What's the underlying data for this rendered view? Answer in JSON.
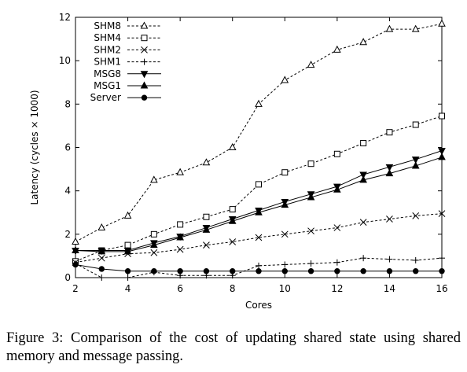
{
  "chart_data": {
    "type": "line",
    "xlabel": "Cores",
    "ylabel": "Latency (cycles × 1000)",
    "xlim": [
      2,
      16
    ],
    "ylim": [
      0,
      12
    ],
    "xticks": [
      2,
      4,
      6,
      8,
      10,
      12,
      14,
      16
    ],
    "yticks": [
      0,
      2,
      4,
      6,
      8,
      10,
      12
    ],
    "grid": false,
    "legend_position": "top-left",
    "x": [
      2,
      3,
      4,
      5,
      6,
      7,
      8,
      9,
      10,
      11,
      12,
      13,
      14,
      15,
      16
    ],
    "series": [
      {
        "name": "SHM8",
        "style": "dashed",
        "marker": "triangle-open",
        "values": [
          1.65,
          2.3,
          2.85,
          4.5,
          4.85,
          5.3,
          6.0,
          8.0,
          9.1,
          9.8,
          10.5,
          10.85,
          11.45,
          11.45,
          11.7
        ]
      },
      {
        "name": "SHM4",
        "style": "dashed",
        "marker": "square-open",
        "values": [
          0.75,
          1.25,
          1.5,
          2.0,
          2.45,
          2.8,
          3.15,
          4.3,
          4.85,
          5.25,
          5.7,
          6.2,
          6.7,
          7.05,
          7.45
        ]
      },
      {
        "name": "SHM2",
        "style": "dashed",
        "marker": "x",
        "values": [
          0.7,
          0.9,
          1.1,
          1.15,
          1.3,
          1.5,
          1.65,
          1.85,
          2.0,
          2.15,
          2.3,
          2.55,
          2.7,
          2.85,
          2.95
        ]
      },
      {
        "name": "SHM1",
        "style": "dashed",
        "marker": "plus",
        "values": [
          0.65,
          0.0,
          0.0,
          0.25,
          0.1,
          0.1,
          0.1,
          0.55,
          0.6,
          0.65,
          0.7,
          0.9,
          0.85,
          0.8,
          0.9
        ]
      },
      {
        "name": "MSG8",
        "style": "solid",
        "marker": "triangle-down-filled",
        "values": [
          1.25,
          1.25,
          1.25,
          1.6,
          1.9,
          2.3,
          2.7,
          3.1,
          3.5,
          3.85,
          4.2,
          4.75,
          5.1,
          5.45,
          5.85
        ]
      },
      {
        "name": "MSG1",
        "style": "solid",
        "marker": "triangle-filled",
        "values": [
          1.25,
          1.2,
          1.2,
          1.5,
          1.85,
          2.2,
          2.6,
          3.0,
          3.35,
          3.7,
          4.05,
          4.5,
          4.8,
          5.15,
          5.55
        ]
      },
      {
        "name": "Server",
        "style": "solid",
        "marker": "circle-filled",
        "values": [
          0.6,
          0.4,
          0.3,
          0.3,
          0.3,
          0.3,
          0.3,
          0.3,
          0.3,
          0.3,
          0.3,
          0.3,
          0.3,
          0.3,
          0.3
        ]
      }
    ]
  },
  "caption": "Figure 3: Comparison of the cost of updating shared state using shared memory and message passing."
}
